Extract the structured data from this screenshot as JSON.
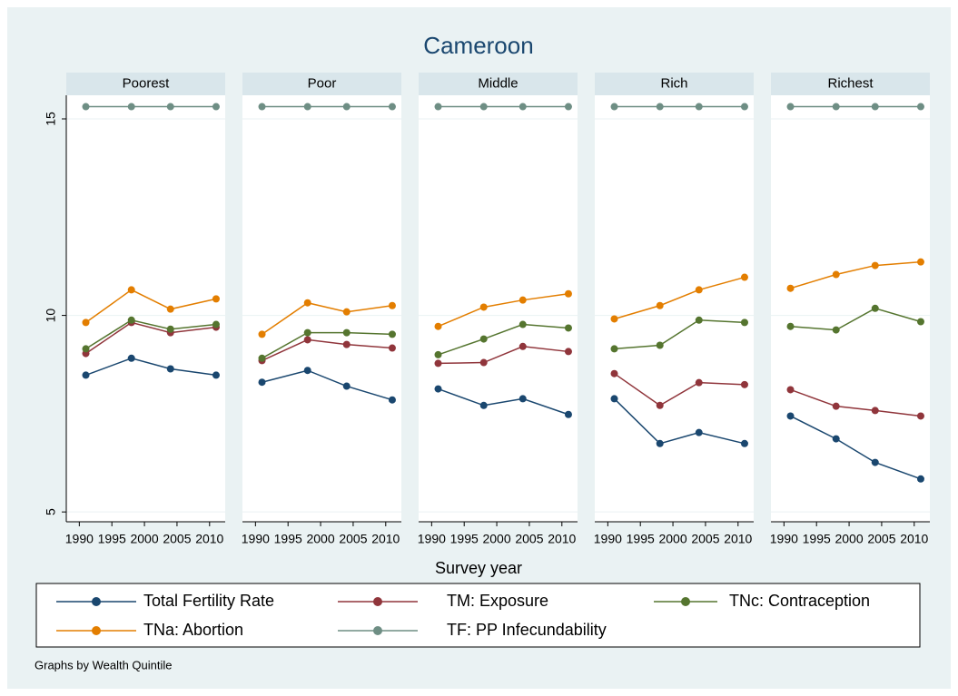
{
  "chart_data": {
    "type": "line",
    "title": "Cameroon",
    "xlabel": "Survey year",
    "note": "Graphs by Wealth Quintile",
    "x": [
      1991,
      1998,
      2004,
      2011
    ],
    "xlim": [
      1988,
      2012.4
    ],
    "xticks": [
      1990,
      1995,
      2000,
      2005,
      2010
    ],
    "ylim": [
      4.75,
      15.6
    ],
    "yticks": [
      5,
      10,
      15
    ],
    "grid": true,
    "series": [
      {
        "name": "Total Fertility Rate",
        "color": "#1a476f"
      },
      {
        "name": "TM: Exposure",
        "color": "#90353b"
      },
      {
        "name": "TNc: Contraception",
        "color": "#55752f"
      },
      {
        "name": "TNa: Abortion",
        "color": "#e37e00"
      },
      {
        "name": "TF: PP Infecundability",
        "color": "#6e8e84"
      }
    ],
    "panels": [
      {
        "title": "Poorest",
        "values": [
          [
            8.48,
            8.91,
            8.64,
            8.48
          ],
          [
            9.03,
            9.82,
            9.56,
            9.7
          ],
          [
            9.15,
            9.88,
            9.65,
            9.77
          ],
          [
            9.82,
            10.65,
            10.16,
            10.42
          ],
          [
            15.31,
            15.31,
            15.31,
            15.31
          ]
        ]
      },
      {
        "title": "Poor",
        "values": [
          [
            8.3,
            8.6,
            8.2,
            7.85
          ],
          [
            8.85,
            9.38,
            9.26,
            9.17
          ],
          [
            8.91,
            9.56,
            9.56,
            9.52
          ],
          [
            9.52,
            10.32,
            10.09,
            10.25
          ],
          [
            15.31,
            15.31,
            15.31,
            15.31
          ]
        ]
      },
      {
        "title": "Middle",
        "values": [
          [
            8.13,
            7.71,
            7.88,
            7.48
          ],
          [
            8.78,
            8.8,
            9.21,
            9.08
          ],
          [
            9.0,
            9.4,
            9.77,
            9.68
          ],
          [
            9.72,
            10.21,
            10.39,
            10.55
          ],
          [
            15.31,
            15.31,
            15.31,
            15.31
          ]
        ]
      },
      {
        "title": "Rich",
        "values": [
          [
            7.88,
            6.74,
            7.02,
            6.74
          ],
          [
            8.52,
            7.71,
            8.29,
            8.24
          ],
          [
            9.15,
            9.24,
            9.88,
            9.82
          ],
          [
            9.91,
            10.25,
            10.65,
            10.97
          ],
          [
            15.31,
            15.31,
            15.31,
            15.31
          ]
        ]
      },
      {
        "title": "Richest",
        "values": [
          [
            7.44,
            6.86,
            6.26,
            5.84
          ],
          [
            8.11,
            7.69,
            7.58,
            7.44
          ],
          [
            9.72,
            9.63,
            10.18,
            9.84
          ],
          [
            10.69,
            11.04,
            11.27,
            11.36
          ],
          [
            15.31,
            15.31,
            15.31,
            15.31
          ]
        ]
      }
    ]
  }
}
